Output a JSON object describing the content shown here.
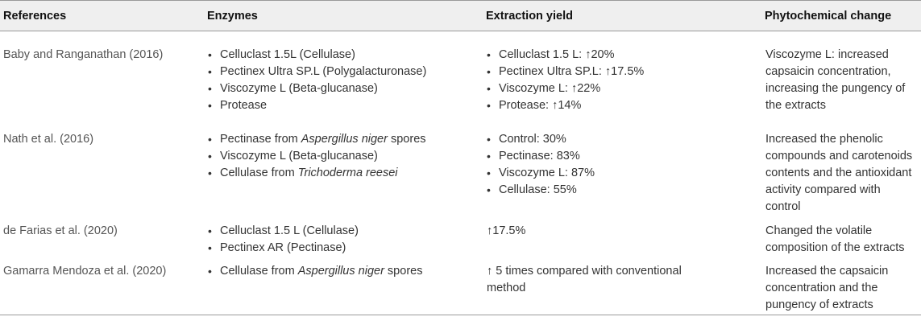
{
  "table": {
    "headers": {
      "references": "References",
      "enzymes": "Enzymes",
      "extraction_yield": "Extraction yield",
      "phytochemical_change": "Phytochemical change"
    },
    "rows": [
      {
        "reference": "Baby and Ranganathan (2016)",
        "enzymes": [
          [
            {
              "t": "Celluclast 1.5L (Cellulase)"
            }
          ],
          [
            {
              "t": "Pectinex Ultra SP.L (Polygalacturonase)"
            }
          ],
          [
            {
              "t": "Viscozyme L (Beta-glucanase)"
            }
          ],
          [
            {
              "t": " Protease"
            }
          ]
        ],
        "yield": [
          "Celluclast 1.5 L: ↑20%",
          "Pectinex Ultra SP.L: ↑17.5%",
          "Viscozyme L: ↑22%",
          "Protease: ↑14%"
        ],
        "yield_is_list": true,
        "change": "Viscozyme L: increased capsaicin concentration, increasing the pungency of the extracts"
      },
      {
        "reference": "Nath et al. (2016)",
        "enzymes": [
          [
            {
              "t": "Pectinase from "
            },
            {
              "t": "Aspergillus niger",
              "i": true
            },
            {
              "t": " spores"
            }
          ],
          [
            {
              "t": "Viscozyme L (Beta-glucanase)"
            }
          ],
          [
            {
              "t": "Cellulase from "
            },
            {
              "t": "Trichoderma reesei",
              "i": true
            }
          ]
        ],
        "yield": [
          "Control: 30%",
          "Pectinase: 83%",
          "Viscozyme L: 87%",
          "Cellulase: 55%"
        ],
        "yield_is_list": true,
        "change": "Increased the phenolic compounds and carotenoids contents and the antioxidant activity compared with control"
      },
      {
        "reference": "de Farias et al. (2020)",
        "enzymes": [
          [
            {
              "t": "Celluclast 1.5 L (Cellulase)"
            }
          ],
          [
            {
              "t": "Pectinex AR (Pectinase)"
            }
          ]
        ],
        "yield": [
          "↑17.5%"
        ],
        "yield_is_list": false,
        "change": "Changed the volatile composition of the extracts"
      },
      {
        "reference": "Gamarra Mendoza et al. (2020)",
        "enzymes": [
          [
            {
              "t": "Cellulase from "
            },
            {
              "t": "Aspergillus niger",
              "i": true
            },
            {
              "t": " spores"
            }
          ]
        ],
        "yield": [
          "↑ 5 times compared with conventional method"
        ],
        "yield_is_list": false,
        "change": "Increased the capsaicin concentration and the pungency of extracts"
      }
    ]
  }
}
